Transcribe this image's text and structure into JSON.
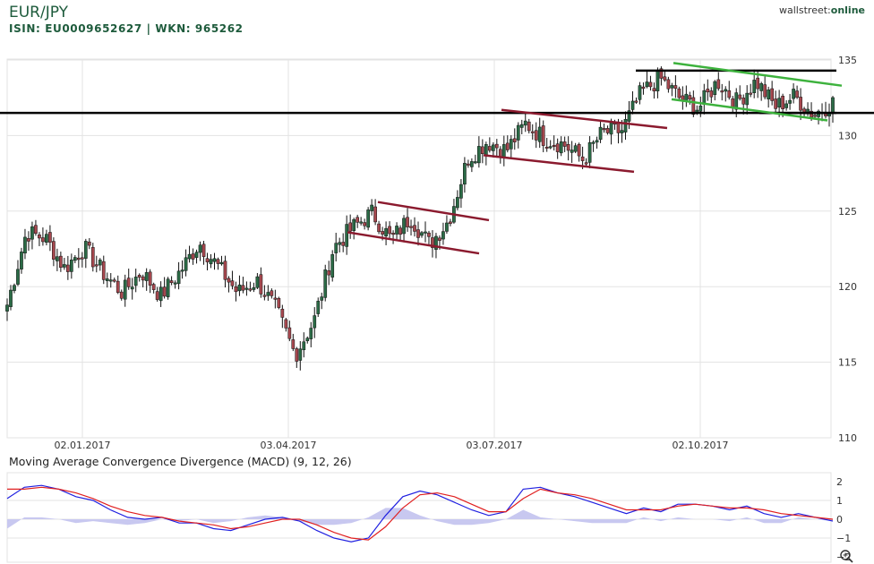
{
  "header": {
    "title": "EUR/JPY",
    "isin_line": "ISIN: EU0009652627 | WKN: 965262",
    "brand_a": "wallstreet",
    "brand_b": "online"
  },
  "zoom_icon": "magnifier-plus-icon",
  "colors": {
    "up": "#2b6b46",
    "down": "#a6474e",
    "wick": "#111111",
    "resist": "#000000",
    "channel_red": "#8b1a2e",
    "channel_green": "#3db23d",
    "macd": "#2020e0",
    "signal": "#e02020",
    "hist": "#c8c8f0",
    "grid": "#e3e3e3"
  },
  "chart_data": [
    {
      "type": "candlestick",
      "x_tick_labels": [
        "02.01.2017",
        "03.04.2017",
        "03.07.2017",
        "02.10.2017"
      ],
      "y_ticks": [
        110,
        115,
        120,
        125,
        130,
        135
      ],
      "ylim": [
        110,
        136
      ],
      "grid": true,
      "anchors": [
        118.8,
        123.6,
        123.2,
        121.2,
        122.6,
        120.9,
        119.6,
        121.0,
        119.4,
        121.0,
        122.9,
        121.3,
        119.6,
        120.4,
        118.5,
        115.5,
        117.8,
        122.6,
        123.9,
        124.9,
        123.1,
        124.6,
        122.8,
        124.4,
        128.5,
        129.6,
        129.0,
        130.8,
        129.8,
        129.4,
        128.4,
        130.2,
        130.3,
        132.8,
        133.8,
        132.5,
        131.8,
        133.6,
        132.2,
        133.6,
        131.9,
        132.6,
        131.4,
        132.2
      ],
      "trend_lines": [
        {
          "name": "resistance-long",
          "points": [
            [
              0,
              131.5
            ],
            [
              976,
              131.5
            ]
          ]
        },
        {
          "name": "resistance-top",
          "points": [
            [
              710,
              134.3
            ],
            [
              934,
              134.3
            ]
          ]
        },
        {
          "name": "support-top",
          "points": [
            [
              848,
              131.5
            ],
            [
              934,
              131.5
            ]
          ]
        }
      ],
      "channels": [
        {
          "color": "red",
          "upper": [
            [
              422,
              125.6
            ],
            [
              546,
              124.4
            ]
          ],
          "lower": [
            [
              388,
              123.6
            ],
            [
              535,
              122.2
            ]
          ]
        },
        {
          "color": "red",
          "upper": [
            [
              560,
              131.7
            ],
            [
              745,
              130.5
            ]
          ],
          "lower": [
            [
              540,
              128.7
            ],
            [
              708,
              127.6
            ]
          ]
        },
        {
          "color": "green",
          "upper": [
            [
              752,
              134.8
            ],
            [
              940,
              133.3
            ]
          ],
          "lower": [
            [
              750,
              132.4
            ],
            [
              924,
              131.0
            ]
          ]
        }
      ]
    },
    {
      "type": "line",
      "title": "Moving Average Convergence Divergence (MACD) (9, 12, 26)",
      "y_ticks": [
        2,
        1,
        0,
        -1,
        -2
      ],
      "ylim": [
        -2,
        2
      ],
      "series": [
        {
          "name": "MACD",
          "values": [
            1.1,
            1.7,
            1.8,
            1.6,
            1.2,
            1.0,
            0.5,
            0.1,
            0.0,
            0.1,
            -0.2,
            -0.2,
            -0.5,
            -0.6,
            -0.3,
            0.0,
            0.1,
            -0.1,
            -0.6,
            -1.0,
            -1.2,
            -1.0,
            0.2,
            1.2,
            1.5,
            1.3,
            0.9,
            0.5,
            0.2,
            0.4,
            1.6,
            1.7,
            1.4,
            1.2,
            0.9,
            0.6,
            0.3,
            0.6,
            0.4,
            0.8,
            0.8,
            0.7,
            0.5,
            0.7,
            0.3,
            0.1,
            0.3,
            0.1,
            -0.1
          ]
        },
        {
          "name": "Signal",
          "values": [
            1.6,
            1.6,
            1.7,
            1.6,
            1.4,
            1.1,
            0.7,
            0.4,
            0.2,
            0.1,
            -0.1,
            -0.2,
            -0.3,
            -0.5,
            -0.4,
            -0.2,
            0.0,
            0.0,
            -0.3,
            -0.7,
            -1.0,
            -1.1,
            -0.4,
            0.6,
            1.3,
            1.4,
            1.2,
            0.8,
            0.4,
            0.4,
            1.1,
            1.6,
            1.4,
            1.3,
            1.1,
            0.8,
            0.5,
            0.5,
            0.5,
            0.7,
            0.8,
            0.7,
            0.6,
            0.6,
            0.5,
            0.3,
            0.2,
            0.1,
            0.0
          ]
        },
        {
          "name": "Histogram",
          "values": [
            -0.5,
            0.1,
            0.1,
            0.0,
            -0.2,
            -0.1,
            -0.2,
            -0.3,
            -0.2,
            0.0,
            -0.1,
            0.0,
            -0.2,
            -0.1,
            0.1,
            0.2,
            0.1,
            -0.1,
            -0.3,
            -0.3,
            -0.2,
            0.1,
            0.6,
            0.6,
            0.2,
            -0.1,
            -0.3,
            -0.3,
            -0.2,
            0.0,
            0.5,
            0.1,
            0.0,
            -0.1,
            -0.2,
            -0.2,
            -0.2,
            0.1,
            -0.1,
            0.1,
            0.0,
            0.0,
            -0.1,
            0.1,
            -0.2,
            -0.2,
            0.1,
            0.0,
            -0.1
          ]
        }
      ]
    }
  ]
}
